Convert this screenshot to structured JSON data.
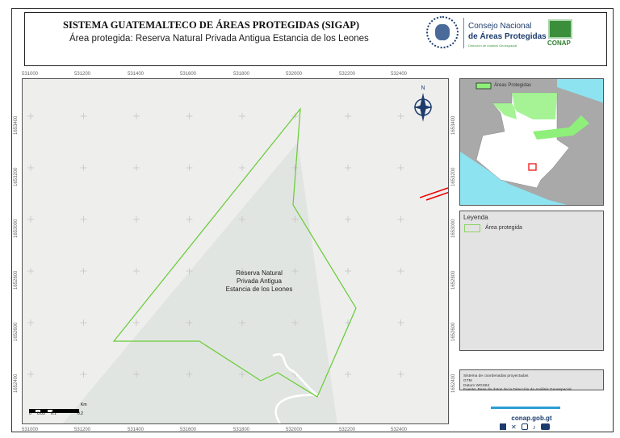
{
  "header": {
    "title": "SISTEMA GUATEMALTECO DE ÁREAS PROTEGIDAS  (SIGAP)",
    "subtitle": "Área protegida: Reserva Natural Privada Antigua Estancia de los Leones",
    "org_line1": "Consejo Nacional",
    "org_line2": "de Áreas Protegidas",
    "org_line3": "Dirección de Análisis Geoespacial",
    "logo_text": "CONAP",
    "seal_text": "GUATEMALA"
  },
  "map": {
    "area_label": [
      "Reserva Natural",
      "Privada Antigua",
      "Estancia de los Leones"
    ],
    "north": "N",
    "x_ticks": [
      "531000",
      "531200",
      "531400",
      "531600",
      "531800",
      "532000",
      "532200",
      "532400"
    ],
    "y_ticks": [
      "1653400",
      "1653200",
      "1653000",
      "1652800",
      "1652600",
      "1652400"
    ],
    "scale": {
      "labels": [
        "0",
        "0.05",
        "0.1",
        "0.2"
      ],
      "unit": "Km"
    },
    "boundary_color": "#66cc33"
  },
  "inset": {
    "legend_label": "Áreas Protegidas"
  },
  "legend": {
    "title": "Leyenda",
    "item": "Área protegida"
  },
  "info": {
    "lines": [
      "Sistema de coordenadas proyectadas",
      "GTM",
      "Datum WGS84",
      "Fuente: Base de datos de la Dirección de Análisis Geoespacial"
    ]
  },
  "footer": {
    "website": "conap.gob.gt",
    "social": [
      "facebook-icon",
      "x-icon",
      "instagram-icon",
      "tiktok-icon",
      "youtube-icon"
    ]
  }
}
